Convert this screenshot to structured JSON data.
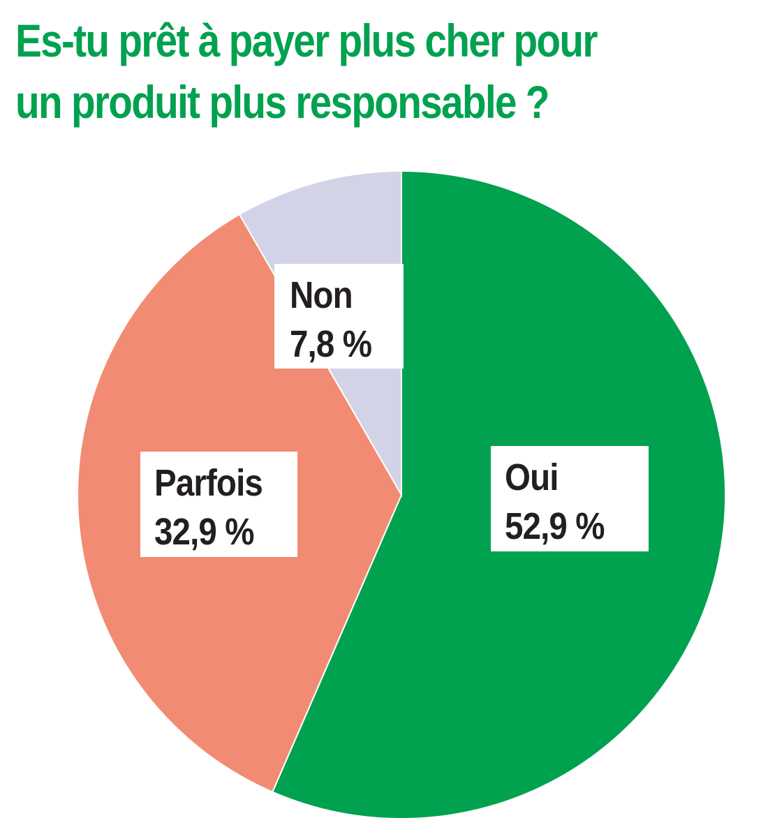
{
  "title_lines": [
    "Es-tu prêt à payer plus cher pour",
    "un produit plus responsable ?"
  ],
  "chart_data": {
    "type": "pie",
    "title": "Es-tu prêt à payer plus cher pour un produit plus responsable ?",
    "slices": [
      {
        "label": "Oui",
        "value": 52.9,
        "value_label": "52,9 %",
        "color": "#00a14f"
      },
      {
        "label": "Parfois",
        "value": 32.9,
        "value_label": "32,9 %",
        "color": "#f28b73"
      },
      {
        "label": "Non",
        "value": 7.8,
        "value_label": "7,8 %",
        "color": "#d3d3e8"
      }
    ],
    "start_angle": "12 o'clock",
    "direction": "clockwise"
  }
}
